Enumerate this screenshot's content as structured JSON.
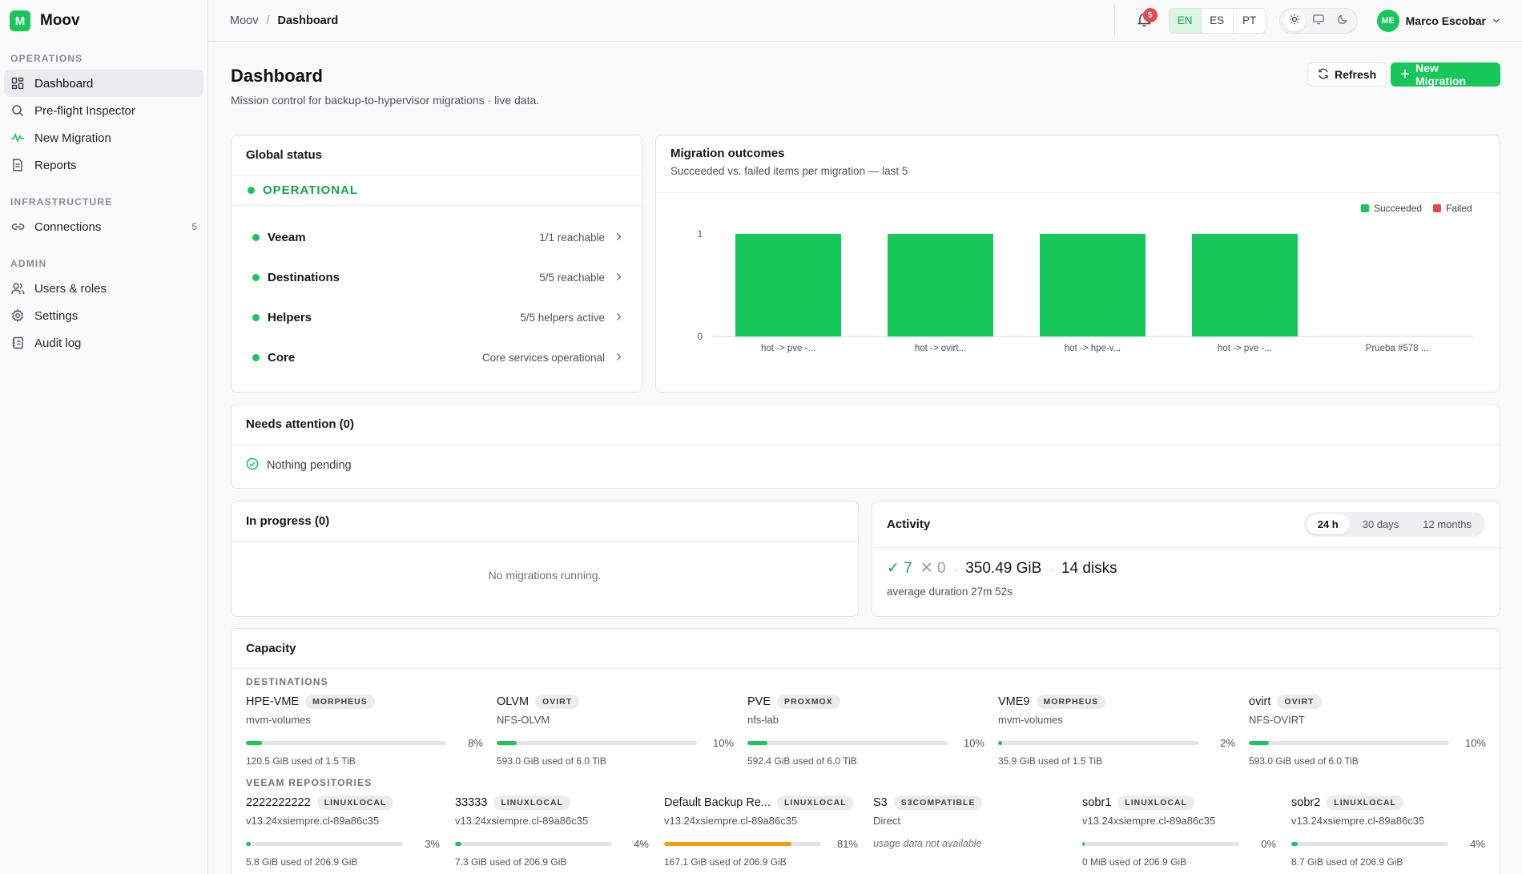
{
  "app": {
    "name": "Moov",
    "logo_letter": "M"
  },
  "sidebar": {
    "sections": [
      {
        "title": "OPERATIONS",
        "items": [
          {
            "label": "Dashboard",
            "icon": "dashboard-grid-icon"
          },
          {
            "label": "Pre-flight Inspector",
            "icon": "search-icon"
          },
          {
            "label": "New Migration",
            "icon": "activity-icon"
          },
          {
            "label": "Reports",
            "icon": "document-icon"
          }
        ]
      },
      {
        "title": "INFRASTRUCTURE",
        "items": [
          {
            "label": "Connections",
            "icon": "link-icon",
            "count": "5"
          }
        ]
      },
      {
        "title": "ADMIN",
        "items": [
          {
            "label": "Users & roles",
            "icon": "users-icon"
          },
          {
            "label": "Settings",
            "icon": "gear-icon"
          },
          {
            "label": "Audit log",
            "icon": "log-icon"
          }
        ]
      }
    ]
  },
  "topbar": {
    "breadcrumb_root": "Moov",
    "breadcrumb_sep": "/",
    "breadcrumb_current": "Dashboard",
    "notifications_count": "5",
    "languages": [
      "EN",
      "ES",
      "PT"
    ],
    "active_language": "EN",
    "user": {
      "initials": "ME",
      "name": "Marco Escobar"
    }
  },
  "page": {
    "title": "Dashboard",
    "subtitle": "Mission control for backup-to-hypervisor migrations · live data.",
    "refresh_label": "Refresh",
    "new_migration_label": "New Migration"
  },
  "global_status": {
    "title": "Global status",
    "state": "OPERATIONAL",
    "rows": [
      {
        "name": "Veeam",
        "detail": "1/1 reachable"
      },
      {
        "name": "Destinations",
        "detail": "5/5 reachable"
      },
      {
        "name": "Helpers",
        "detail": "5/5 helpers active"
      },
      {
        "name": "Core",
        "detail": "Core services operational"
      }
    ]
  },
  "outcomes": {
    "title": "Migration outcomes",
    "subtitle": "Succeeded vs. failed items per migration — last 5"
  },
  "chart_data": {
    "type": "bar",
    "categories": [
      "hot -> pve -...",
      "hot -> ovirt...",
      "hot -> hpe-v...",
      "hot -> pve -...",
      "Prueba #578 ..."
    ],
    "series": [
      {
        "name": "Succeeded",
        "color": "#16c75a",
        "values": [
          1,
          1,
          1,
          1,
          0
        ]
      },
      {
        "name": "Failed",
        "color": "#e5484d",
        "values": [
          0,
          0,
          0,
          0,
          0
        ]
      }
    ],
    "yticks": [
      "0",
      "1"
    ],
    "ylim": [
      0,
      1
    ],
    "legend": "top-right",
    "stacked": true
  },
  "attention": {
    "title": "Needs attention (0)",
    "message": "Nothing pending"
  },
  "in_progress": {
    "title": "In progress (0)",
    "message": "No migrations running."
  },
  "activity": {
    "title": "Activity",
    "ranges": [
      "24 h",
      "30 days",
      "12 months"
    ],
    "active_range": "24 h",
    "ok_count": "7",
    "fail_count": "0",
    "volume": "350.49 GiB",
    "disks": "14 disks",
    "avg": "average duration 27m 52s",
    "check": "✓",
    "cross": "✕",
    "sep": "·"
  },
  "capacity": {
    "title": "Capacity",
    "destinations_title": "DESTINATIONS",
    "repos_title": "VEEAM REPOSITORIES",
    "destinations": [
      {
        "name": "HPE-VME",
        "badge": "MORPHEUS",
        "sub": "mvm-volumes",
        "pct_value": 0.08,
        "pct": "8%",
        "used": "120.5 GiB used of 1.5 TiB"
      },
      {
        "name": "OLVM",
        "badge": "OVIRT",
        "sub": "NFS-OLVM",
        "pct_value": 0.1,
        "pct": "10%",
        "used": "593.0 GiB used of 6.0 TiB"
      },
      {
        "name": "PVE",
        "badge": "PROXMOX",
        "sub": "nfs-lab",
        "pct_value": 0.1,
        "pct": "10%",
        "used": "592.4 GiB used of 6.0 TiB"
      },
      {
        "name": "VME9",
        "badge": "MORPHEUS",
        "sub": "mvm-volumes",
        "pct_value": 0.02,
        "pct": "2%",
        "used": "35.9 GiB used of 1.5 TiB"
      },
      {
        "name": "ovirt",
        "badge": "OVIRT",
        "sub": "NFS-OVIRT",
        "pct_value": 0.1,
        "pct": "10%",
        "used": "593.0 GiB used of 6.0 TiB"
      }
    ],
    "repos": [
      {
        "name": "2222222222",
        "badge": "LINUXLOCAL",
        "sub": "v13.24xsiempre.cl-89a86c35",
        "pct_value": 0.03,
        "pct": "3%",
        "used": "5.8 GiB used of 206.9 GiB"
      },
      {
        "name": "33333",
        "badge": "LINUXLOCAL",
        "sub": "v13.24xsiempre.cl-89a86c35",
        "pct_value": 0.04,
        "pct": "4%",
        "used": "7.3 GiB used of 206.9 GiB"
      },
      {
        "name": "Default Backup Re...",
        "badge": "LINUXLOCAL",
        "sub": "v13.24xsiempre.cl-89a86c35",
        "pct_value": 0.81,
        "pct": "81%",
        "used": "167.1 GiB used of 206.9 GiB",
        "warn": true
      },
      {
        "name": "S3",
        "badge": "S3COMPATIBLE",
        "sub": "Direct",
        "nodata": "usage data not available"
      },
      {
        "name": "sobr1",
        "badge": "LINUXLOCAL",
        "sub": "v13.24xsiempre.cl-89a86c35",
        "pct_value": 0.0,
        "pct": "0%",
        "used": "0 MiB used of 206.9 GiB"
      },
      {
        "name": "sobr2",
        "badge": "LINUXLOCAL",
        "sub": "v13.24xsiempre.cl-89a86c35",
        "pct_value": 0.04,
        "pct": "4%",
        "used": "8.7 GiB used of 206.9 GiB"
      }
    ]
  }
}
